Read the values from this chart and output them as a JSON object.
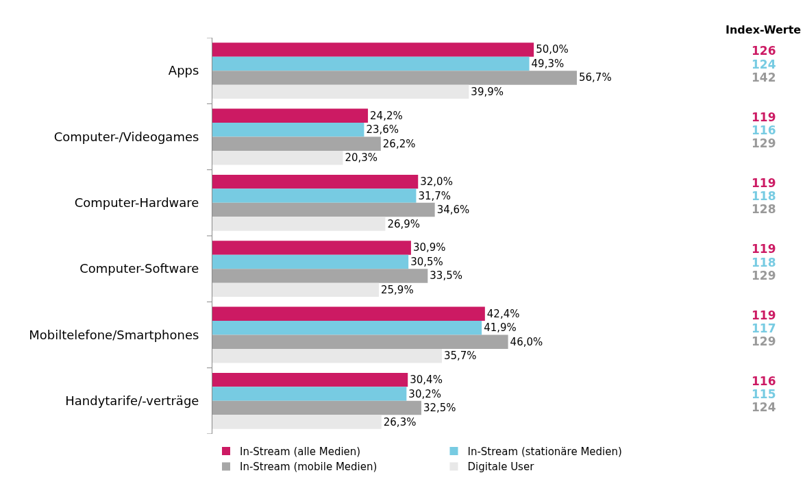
{
  "chart_data": {
    "type": "bar",
    "orientation": "horizontal",
    "legend": "bottom",
    "tick_labels": "y",
    "categories": [
      "Apps",
      "Computer-/Videogames",
      "Computer-Hardware",
      "Computer-Software",
      "Mobiltelefone/Smartphones",
      "Handytarife/-verträge"
    ],
    "series": [
      {
        "name": "In-Stream (alle Medien)",
        "color": "#cc1a63",
        "values": [
          50.0,
          24.2,
          32.0,
          30.9,
          42.4,
          30.4
        ],
        "value_labels": [
          "50,0%",
          "24,2%",
          "32,0%",
          "30,9%",
          "42,4%",
          "30,4%"
        ]
      },
      {
        "name": "In-Stream (stationäre Medien)",
        "color": "#77cbe2",
        "values": [
          49.3,
          23.6,
          31.7,
          30.5,
          41.9,
          30.2
        ],
        "value_labels": [
          "49,3%",
          "23,6%",
          "31,7%",
          "30,5%",
          "41,9%",
          "30,2%"
        ]
      },
      {
        "name": "In-Stream (mobile Medien)",
        "color": "#a6a6a6",
        "values": [
          56.7,
          26.2,
          34.6,
          33.5,
          46.0,
          32.5
        ],
        "value_labels": [
          "56,7%",
          "26,2%",
          "34,6%",
          "33,5%",
          "46,0%",
          "32,5%"
        ]
      },
      {
        "name": "Digitale User",
        "color": "#e8e8e8",
        "values": [
          39.9,
          20.3,
          26.9,
          25.9,
          35.7,
          26.3
        ],
        "value_labels": [
          "39,9%",
          "20,3%",
          "26,9%",
          "25,9%",
          "35,7%",
          "26,3%"
        ]
      }
    ],
    "annotations": [
      "Index-Werte",
      "126",
      "124",
      "142",
      "119",
      "116",
      "129",
      "119",
      "118",
      "128",
      "119",
      "118",
      "129",
      "119",
      "117",
      "129",
      "116",
      "115",
      "124"
    ]
  }
}
